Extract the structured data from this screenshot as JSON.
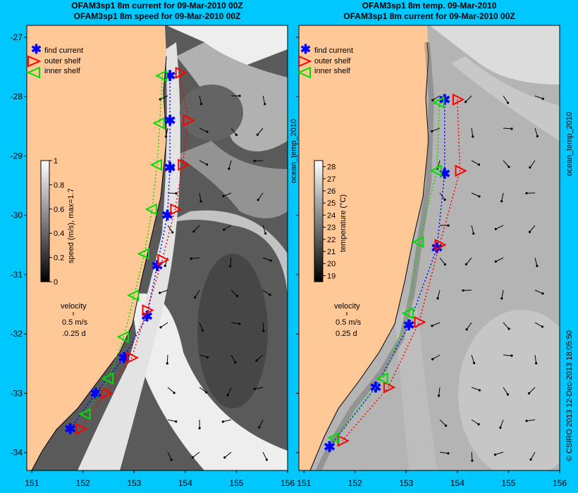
{
  "chart_data": [
    {
      "type": "map",
      "title_line1": "OFAM3sp1 8m current for 09-Mar-2010 00Z",
      "title_line2": "OFAM3sp1 8m speed for 09-Mar-2010 00Z",
      "xlim": [
        150.9,
        156
      ],
      "ylim": [
        -34.3,
        -26.8
      ],
      "x_ticks": [
        "151",
        "152",
        "153",
        "154",
        "155",
        "156"
      ],
      "y_ticks": [
        "-27",
        "-28",
        "-29",
        "-30",
        "-31",
        "-32",
        "-33",
        "-34"
      ],
      "legend": [
        "find current",
        "outer shelf",
        "inner shelf"
      ],
      "colorbar": {
        "label": "speed (m/s), max=1.7",
        "ticks": [
          "1",
          "0.8",
          "0.6",
          "0.4",
          "0.2",
          "0"
        ],
        "range": [
          0,
          1
        ]
      },
      "velocity_key": {
        "title": "velocity",
        "speed": "0.5 m/s",
        "duration": ".0.25 d"
      },
      "find_current": [
        [
          153.7,
          -27.65
        ],
        [
          153.7,
          -28.4
        ],
        [
          153.7,
          -29.2
        ],
        [
          153.65,
          -30.0
        ],
        [
          153.45,
          -30.85
        ],
        [
          153.25,
          -31.7
        ],
        [
          152.8,
          -32.4
        ],
        [
          152.25,
          -33.0
        ],
        [
          151.75,
          -33.6
        ]
      ],
      "outer_shelf": [
        [
          153.9,
          -27.6
        ],
        [
          154.05,
          -28.4
        ],
        [
          153.95,
          -29.15
        ],
        [
          153.8,
          -29.9
        ],
        [
          153.55,
          -30.75
        ],
        [
          153.25,
          -31.6
        ],
        [
          152.95,
          -32.4
        ],
        [
          152.45,
          -33.0
        ],
        [
          151.95,
          -33.6
        ]
      ],
      "inner_shelf": [
        [
          153.55,
          -27.65
        ],
        [
          153.5,
          -28.45
        ],
        [
          153.45,
          -29.15
        ],
        [
          153.35,
          -29.9
        ],
        [
          153.2,
          -30.65
        ],
        [
          153.0,
          -31.35
        ],
        [
          152.8,
          -32.05
        ],
        [
          152.5,
          -32.75
        ],
        [
          152.05,
          -33.35
        ]
      ]
    },
    {
      "type": "map",
      "title_line1": "OFAM3sp1 8m temp. 09-Mar-2010",
      "title_line2": "OFAM3sp1 8m current for 09-Mar-2010 00Z",
      "xlim": [
        150.9,
        156
      ],
      "ylim": [
        -34.3,
        -26.8
      ],
      "x_ticks": [
        "151",
        "152",
        "153",
        "154",
        "155",
        "156"
      ],
      "legend": [
        "find current",
        "outer shelf",
        "inner shelf"
      ],
      "colorbar": {
        "label": "temperature (°C)",
        "ticks": [
          "28",
          "27",
          "26",
          "25",
          "24",
          "23",
          "22",
          "21",
          "20",
          "19"
        ],
        "range": [
          18.5,
          28.5
        ]
      },
      "velocity_key": {
        "title": "velocity",
        "speed": "0.5 m/s",
        "duration": "0.25 d"
      },
      "find_current": [
        [
          153.75,
          -28.05
        ],
        [
          153.75,
          -29.3
        ],
        [
          153.6,
          -30.55
        ],
        [
          153.05,
          -31.85
        ],
        [
          152.4,
          -32.9
        ],
        [
          151.5,
          -33.9
        ]
      ],
      "outer_shelf": [
        [
          154.0,
          -28.05
        ],
        [
          154.05,
          -29.25
        ],
        [
          153.65,
          -30.5
        ],
        [
          153.25,
          -31.8
        ],
        [
          152.65,
          -32.9
        ],
        [
          151.75,
          -33.8
        ]
      ],
      "inner_shelf": [
        [
          153.65,
          -28.1
        ],
        [
          153.6,
          -29.25
        ],
        [
          153.25,
          -30.45
        ],
        [
          153.05,
          -31.65
        ],
        [
          152.55,
          -32.75
        ],
        [
          151.6,
          -33.75
        ]
      ]
    }
  ],
  "side_labels": {
    "left_panel": "ocean_temp_2010",
    "right_panel": "ocean_temp_2010",
    "credit": "© CSIRO 2013   12-Dec-2013 18:05:50"
  },
  "colors": {
    "background": "#00c8ff",
    "land": "#ffc896",
    "find_current": "#0000ff",
    "outer_shelf": "#ff0000",
    "inner_shelf": "#00dd00"
  }
}
